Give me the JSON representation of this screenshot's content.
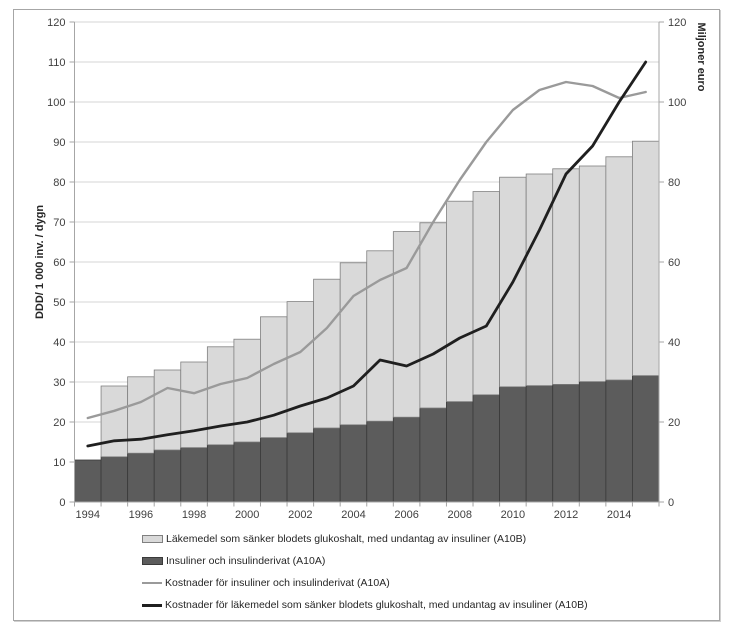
{
  "chart_data": {
    "type": "combo-stacked-bar-line",
    "title": "",
    "x_years": [
      1994,
      1995,
      1996,
      1997,
      1998,
      1999,
      2000,
      2001,
      2002,
      2003,
      2004,
      2005,
      2006,
      2007,
      2008,
      2009,
      2010,
      2011,
      2012,
      2013,
      2014,
      2015
    ],
    "x_axis_tick_labels": [
      "1994",
      "1996",
      "1998",
      "2000",
      "2002",
      "2004",
      "2006",
      "2008",
      "2010",
      "2012",
      "2014"
    ],
    "left_axis": {
      "title": "DDD/ 1 000 inv. / dygn",
      "min": 0,
      "max": 120,
      "step": 10,
      "tick_labels": [
        "0",
        "10",
        "20",
        "30",
        "40",
        "50",
        "60",
        "70",
        "80",
        "90",
        "100",
        "110",
        "120"
      ]
    },
    "right_axis": {
      "title": "Miljoner euro",
      "min": 0,
      "max": 120,
      "step": 20,
      "tick_labels": [
        "0",
        "20",
        "40",
        "60",
        "80",
        "100",
        "120"
      ]
    },
    "bar_series": [
      {
        "name": "Insuliner och insulinderivat (A10A)",
        "stack_position": "bottom",
        "axis": "left",
        "values": [
          10.5,
          11.3,
          12.2,
          13.0,
          13.6,
          14.3,
          15.0,
          16.1,
          17.3,
          18.5,
          19.3,
          20.2,
          21.2,
          23.5,
          25.1,
          26.8,
          28.8,
          29.1,
          29.4,
          30.1,
          30.5,
          31.6
        ]
      },
      {
        "name": "Läkemedel som sänker blodets glukoshalt, med undantag av insuliner (A10B)",
        "stack_position": "top",
        "axis": "left",
        "values": [
          0,
          17.7,
          19.1,
          20.0,
          21.4,
          24.5,
          25.7,
          30.2,
          32.8,
          37.2,
          40.5,
          42.6,
          46.4,
          46.3,
          50.1,
          50.8,
          52.4,
          52.9,
          53.9,
          53.9,
          55.8,
          58.6
        ]
      }
    ],
    "line_series": [
      {
        "name": "Kostnader för insuliner och insulinderivat (A10A)",
        "axis": "right",
        "values": [
          21,
          22.8,
          25,
          28.5,
          27.2,
          29.5,
          31,
          34.5,
          37.5,
          43.5,
          51.5,
          55.5,
          58.5,
          70,
          80.5,
          90,
          98,
          103,
          105,
          104,
          101,
          102.5
        ]
      },
      {
        "name": "Kostnader för läkemedel som sänker blodets glukoshalt, med undantag av insuliner (A10B)",
        "axis": "right",
        "values": [
          14,
          15.3,
          15.7,
          16.8,
          17.8,
          19,
          20,
          21.7,
          24,
          26,
          29,
          35.5,
          34,
          37,
          41,
          44,
          55,
          68,
          82,
          89,
          100,
          110
        ]
      }
    ],
    "legend": [
      {
        "swatch": "bar-light",
        "label": "Läkemedel som sänker blodets glukoshalt, med undantag av insuliner (A10B)"
      },
      {
        "swatch": "bar-dark",
        "label": "Insuliner och insulinderivat (A10A)"
      },
      {
        "swatch": "line-gray",
        "label": "Kostnader för insuliner och insulinderivat (A10A)"
      },
      {
        "swatch": "line-black",
        "label": "Kostnader för läkemedel som sänker blodets glukoshalt, med undantag av insuliner (A10B)"
      }
    ],
    "layout": {
      "grid": true,
      "legend_position": "bottom"
    }
  },
  "colors": {
    "bar_light_fill": "#d9d9d9",
    "bar_light_border": "#808080",
    "bar_dark_fill": "#5c5c5c",
    "bar_dark_border": "#3a3a3a",
    "line_gray": "#9a9a9a",
    "line_black": "#1f1f1f",
    "gridline": "#d6d6d6",
    "axis_line": "#a6a6a6",
    "tick_text": "#3f3f3f",
    "figure_border": "#a6a6a6"
  }
}
